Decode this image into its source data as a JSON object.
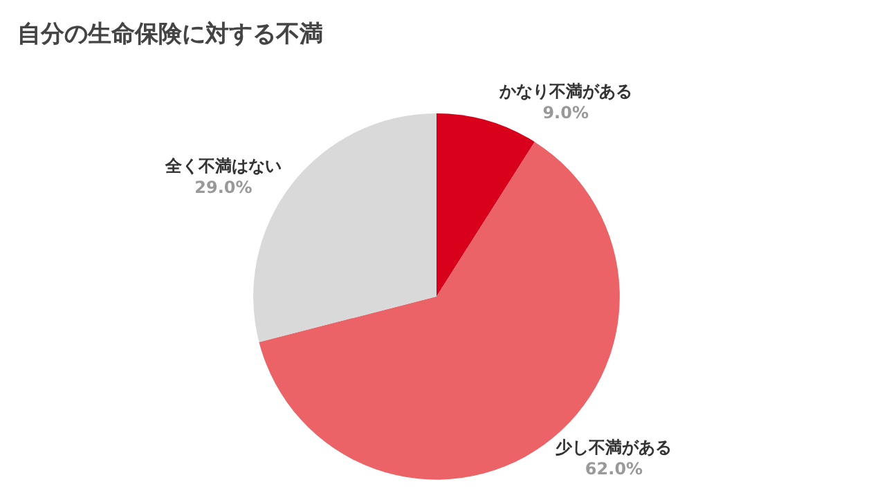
{
  "chart_data": {
    "type": "pie",
    "title": "自分の生命保険に対する不満",
    "categories": [
      "かなり不満がある",
      "少し不満がある",
      "全く不満はない"
    ],
    "values": [
      9,
      62,
      29
    ],
    "value_labels": [
      "9.0%",
      "62.0%",
      "29.0%"
    ],
    "colors": [
      "#d9001b",
      "#eb6367",
      "#d9d9d9"
    ],
    "legend": false
  }
}
